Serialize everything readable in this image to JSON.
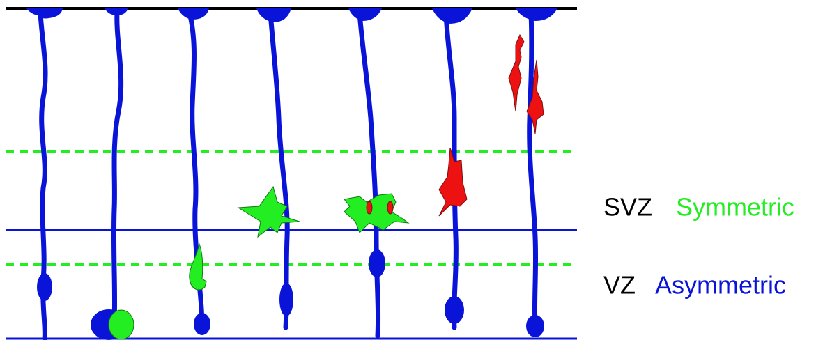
{
  "labels": [
    {
      "zone": "SVZ",
      "division": "Symmetric"
    },
    {
      "zone": "VZ",
      "division": "Asymmetric"
    }
  ]
}
